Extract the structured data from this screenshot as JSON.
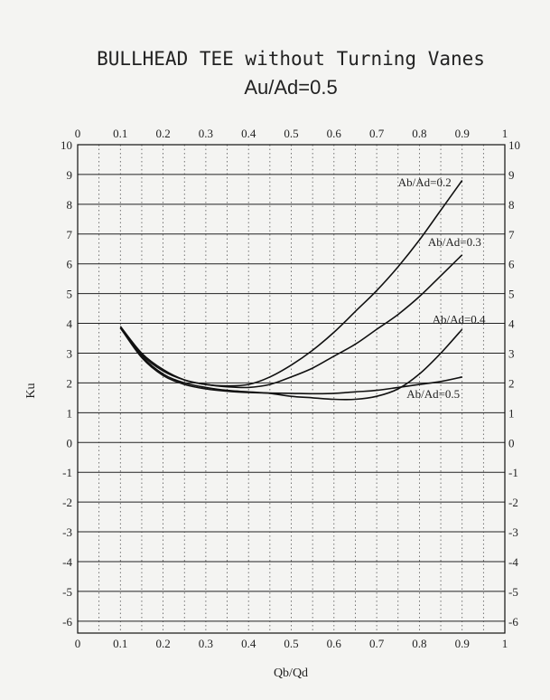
{
  "chart_data": {
    "type": "line",
    "title": "BULLHEAD TEE without Turning Vanes",
    "subtitle": "Au/Ad=0.5",
    "xlabel": "Qb/Qd",
    "ylabel": "Ku",
    "xlim": [
      0,
      1
    ],
    "ylim": [
      -6.4,
      10
    ],
    "grid": true,
    "x_ticks": [
      "0",
      "0.1",
      "0.2",
      "0.3",
      "0.4",
      "0.5",
      "0.6",
      "0.7",
      "0.8",
      "0.9",
      "1"
    ],
    "y_ticks": [
      "10",
      "9",
      "8",
      "7",
      "6",
      "5",
      "4",
      "3",
      "2",
      "1",
      "0",
      "-1",
      "-2",
      "-3",
      "-4",
      "-5",
      "-6"
    ],
    "series": [
      {
        "name": "Ab/Ad=0.2",
        "x": [
          0.1,
          0.15,
          0.2,
          0.25,
          0.3,
          0.35,
          0.4,
          0.45,
          0.5,
          0.55,
          0.6,
          0.65,
          0.7,
          0.75,
          0.8,
          0.85,
          0.9
        ],
        "y": [
          3.9,
          3.0,
          2.45,
          2.1,
          1.95,
          1.9,
          1.95,
          2.2,
          2.6,
          3.1,
          3.7,
          4.4,
          5.1,
          5.9,
          6.8,
          7.8,
          8.8
        ]
      },
      {
        "name": "Ab/Ad=0.3",
        "x": [
          0.1,
          0.15,
          0.2,
          0.25,
          0.3,
          0.35,
          0.4,
          0.45,
          0.5,
          0.55,
          0.6,
          0.65,
          0.7,
          0.75,
          0.8,
          0.85,
          0.9
        ],
        "y": [
          3.85,
          2.95,
          2.4,
          2.1,
          1.95,
          1.87,
          1.85,
          1.95,
          2.2,
          2.5,
          2.9,
          3.3,
          3.8,
          4.3,
          4.9,
          5.6,
          6.3
        ]
      },
      {
        "name": "Ab/Ad=0.4",
        "x": [
          0.1,
          0.15,
          0.2,
          0.25,
          0.3,
          0.35,
          0.4,
          0.45,
          0.5,
          0.55,
          0.6,
          0.65,
          0.7,
          0.75,
          0.8,
          0.85,
          0.9
        ],
        "y": [
          3.85,
          2.9,
          2.3,
          2.0,
          1.85,
          1.75,
          1.7,
          1.65,
          1.55,
          1.5,
          1.45,
          1.45,
          1.55,
          1.8,
          2.3,
          3.0,
          3.8
        ]
      },
      {
        "name": "Ab/Ad=0.5",
        "x": [
          0.1,
          0.15,
          0.2,
          0.25,
          0.3,
          0.35,
          0.4,
          0.45,
          0.5,
          0.55,
          0.6,
          0.65,
          0.7,
          0.75,
          0.8,
          0.85,
          0.9
        ],
        "y": [
          3.85,
          2.85,
          2.25,
          1.95,
          1.8,
          1.72,
          1.68,
          1.66,
          1.65,
          1.64,
          1.65,
          1.7,
          1.75,
          1.85,
          1.95,
          2.05,
          2.2
        ]
      }
    ],
    "annotations": [
      {
        "text": "Ab/Ad=0.2",
        "x": 0.75,
        "y": 8.6
      },
      {
        "text": "Ab/Ad=0.3",
        "x": 0.82,
        "y": 6.6
      },
      {
        "text": "Ab/Ad=0.4",
        "x": 0.83,
        "y": 4.0
      },
      {
        "text": "Ab/Ad=0.5",
        "x": 0.77,
        "y": 1.5
      }
    ]
  }
}
